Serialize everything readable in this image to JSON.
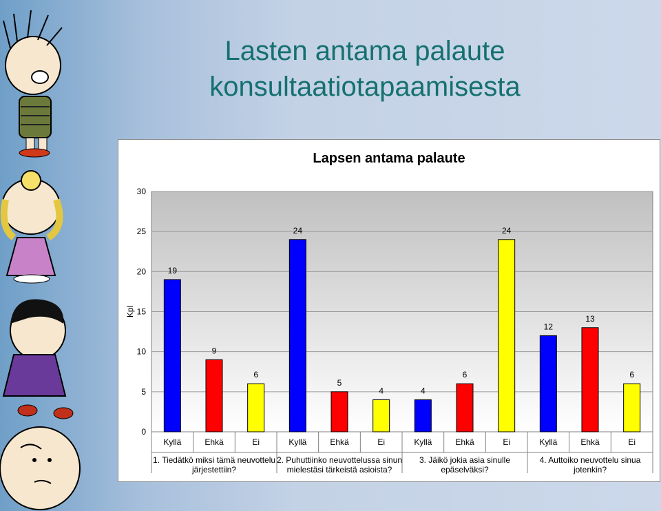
{
  "slide": {
    "title_line1": "Lasten antama palaute",
    "title_line2": "konsultaatiotapaamisesta"
  },
  "chart_data": {
    "type": "bar",
    "title": "Lapsen antama palaute",
    "ylabel": "Kpl",
    "xlabel": "",
    "ylim": [
      0,
      30
    ],
    "yticks": [
      0,
      5,
      10,
      15,
      20,
      25,
      30
    ],
    "grid": true,
    "legend": "none",
    "colors": {
      "Kyllä": "#0000ff",
      "Ehkä": "#ff0000",
      "Ei": "#ffff00"
    },
    "groups": [
      {
        "label": "1. Tiedätkö miksi tämä neuvottelu järjestettiin?",
        "label_lines": [
          "1. Tiedätkö miksi tämä neuvottelu",
          "järjestettiin?"
        ],
        "bars": [
          {
            "category": "Kyllä",
            "value": 19
          },
          {
            "category": "Ehkä",
            "value": 9
          },
          {
            "category": "Ei",
            "value": 6
          }
        ]
      },
      {
        "label": "2. Puhuttiinko neuvottelussa sinun mielestäsi tärkeistä asioista?",
        "label_lines": [
          "2. Puhuttiinko neuvottelussa sinun",
          "mielestäsi tärkeistä asioista?"
        ],
        "bars": [
          {
            "category": "Kyllä",
            "value": 24
          },
          {
            "category": "Ehkä",
            "value": 5
          },
          {
            "category": "Ei",
            "value": 4
          }
        ]
      },
      {
        "label": "3. Jäikö jokia asia sinulle epäselväksi?",
        "label_lines": [
          "3. Jäikö jokia asia sinulle",
          "epäselväksi?"
        ],
        "bars": [
          {
            "category": "Kyllä",
            "value": 4
          },
          {
            "category": "Ehkä",
            "value": 6
          },
          {
            "category": "Ei",
            "value": 24
          }
        ]
      },
      {
        "label": "4. Auttoiko neuvottelu sinua jotenkin?",
        "label_lines": [
          "4. Auttoiko neuvottelu sinua",
          "jotenkin?"
        ],
        "bars": [
          {
            "category": "Kyllä",
            "value": 12
          },
          {
            "category": "Ehkä",
            "value": 13
          },
          {
            "category": "Ei",
            "value": 6
          }
        ]
      }
    ]
  }
}
